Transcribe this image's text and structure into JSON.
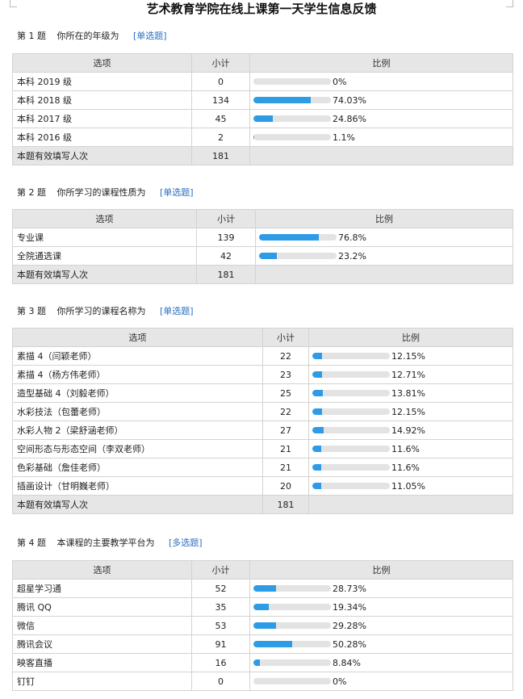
{
  "title": "艺术教育学院在线上课第一天学生信息反馈",
  "questions": [
    {
      "number": "第 1 题",
      "text": "你所在的年级为",
      "type": "[单选题]",
      "headers": [
        "选项",
        "小计",
        "比例"
      ],
      "options": [
        {
          "label": "本科 2019 级",
          "count": "0",
          "ratio": 0.0,
          "percent": "0%"
        },
        {
          "label": "本科 2018 级",
          "count": "134",
          "ratio": 74.03,
          "percent": "74.03%"
        },
        {
          "label": "本科 2017 级",
          "count": "45",
          "ratio": 24.86,
          "percent": "24.86%"
        },
        {
          "label": "本科 2016 级",
          "count": "2",
          "ratio": 1.1,
          "percent": "1.1%"
        }
      ],
      "total_label": "本题有效填写人次",
      "total": "181"
    },
    {
      "number": "第 2 题",
      "text": "你所学习的课程性质为",
      "type": "[单选题]",
      "headers": [
        "选项",
        "小计",
        "比例"
      ],
      "options": [
        {
          "label": "专业课",
          "count": "139",
          "ratio": 76.8,
          "percent": "76.8%"
        },
        {
          "label": "全院通选课",
          "count": "42",
          "ratio": 23.2,
          "percent": "23.2%"
        }
      ],
      "total_label": "本题有效填写人次",
      "total": "181"
    },
    {
      "number": "第 3 题",
      "text": "你所学习的课程名称为",
      "type": "[单选题]",
      "headers": [
        "选项",
        "小计",
        "比例"
      ],
      "options": [
        {
          "label": "素描 4（闫颖老师）",
          "count": "22",
          "ratio": 12.15,
          "percent": "12.15%"
        },
        {
          "label": "素描 4（杨方伟老师）",
          "count": "23",
          "ratio": 12.71,
          "percent": "12.71%"
        },
        {
          "label": "造型基础 4（刘毅老师）",
          "count": "25",
          "ratio": 13.81,
          "percent": "13.81%"
        },
        {
          "label": "水彩技法（包蕾老师）",
          "count": "22",
          "ratio": 12.15,
          "percent": "12.15%"
        },
        {
          "label": "水彩人物 2（梁舒涵老师）",
          "count": "27",
          "ratio": 14.92,
          "percent": "14.92%"
        },
        {
          "label": "空间形态与形态空间（李双老师）",
          "count": "21",
          "ratio": 11.6,
          "percent": "11.6%"
        },
        {
          "label": "色彩基础（詹佳老师）",
          "count": "21",
          "ratio": 11.6,
          "percent": "11.6%"
        },
        {
          "label": "插画设计（甘明巍老师）",
          "count": "20",
          "ratio": 11.05,
          "percent": "11.05%"
        }
      ],
      "total_label": "本题有效填写人次",
      "total": "181"
    },
    {
      "number": "第 4 题",
      "text": "本课程的主要教学平台为",
      "type": "[多选题]",
      "headers": [
        "选项",
        "小计",
        "比例"
      ],
      "options": [
        {
          "label": "超星学习通",
          "count": "52",
          "ratio": 28.73,
          "percent": "28.73%"
        },
        {
          "label": "腾讯 QQ",
          "count": "35",
          "ratio": 19.34,
          "percent": "19.34%"
        },
        {
          "label": "微信",
          "count": "53",
          "ratio": 29.28,
          "percent": "29.28%"
        },
        {
          "label": "腾讯会议",
          "count": "91",
          "ratio": 50.28,
          "percent": "50.28%"
        },
        {
          "label": "映客直播",
          "count": "16",
          "ratio": 8.84,
          "percent": "8.84%"
        },
        {
          "label": "钉钉",
          "count": "0",
          "ratio": 0.0,
          "percent": "0%"
        }
      ]
    }
  ]
}
